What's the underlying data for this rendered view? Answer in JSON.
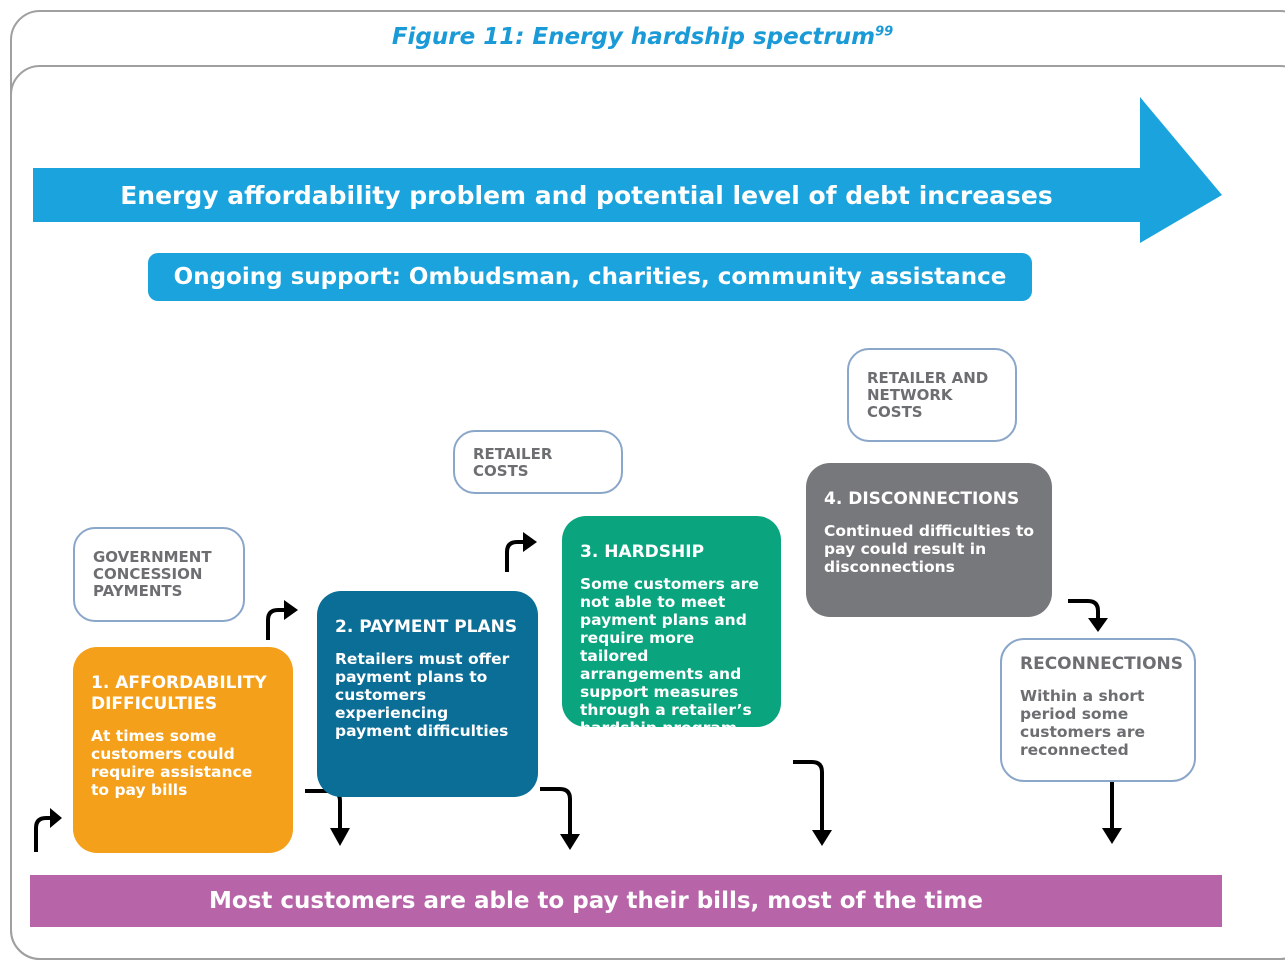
{
  "title": "Figure 11: Energy hardship spectrum",
  "title_footnote": "99",
  "arrow_label": "Energy affordability problem and potential level of debt increases",
  "support_label": "Ongoing support: Ombudsman, charities, community assistance",
  "cost_boxes": [
    "GOVERNMENT CONCESSION PAYMENTS",
    "RETAILER COSTS",
    "RETAILER AND NETWORK COSTS"
  ],
  "stages": [
    {
      "title": "1. AFFORDABILITY DIFFICULTIES",
      "text": "At times some customers could require assistance to pay bills"
    },
    {
      "title": "2. PAYMENT PLANS",
      "text": "Retailers must offer payment plans to customers experiencing payment difficulties"
    },
    {
      "title": "3. HARDSHIP",
      "text": "Some customers are not able to meet payment plans and require more tailored arrangements and support measures through a retailer’s hardship program"
    },
    {
      "title": "4. DISCONNECTIONS",
      "text": "Continued difficulties to pay could result in disconnections"
    },
    {
      "title": "RECONNECTIONS",
      "text": "Within a short period some customers are reconnected"
    }
  ],
  "base_label": "Most customers are able to pay their bills, most of the time"
}
